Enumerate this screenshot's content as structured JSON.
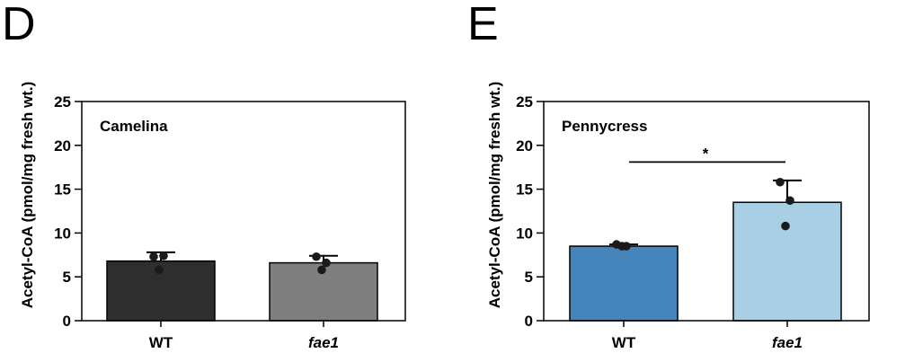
{
  "chart_data": [
    {
      "panel": "D",
      "type": "bar",
      "title": "Camelina",
      "ylabel": "Acetyl-CoA (pmol/mg fresh wt.)",
      "ylim": [
        0,
        25
      ],
      "yticks": [
        0,
        5,
        10,
        15,
        20,
        25
      ],
      "categories": [
        "WT",
        "fae1"
      ],
      "italic_categories": [
        false,
        true
      ],
      "values": [
        6.8,
        6.6
      ],
      "errors": [
        1.0,
        0.8
      ],
      "colors": [
        "#2e2e2e",
        "#7f7f7f"
      ],
      "points": [
        [
          7.3,
          7.4,
          5.8
        ],
        [
          7.3,
          6.6,
          5.8
        ]
      ],
      "significance": null
    },
    {
      "panel": "E",
      "type": "bar",
      "title": "Pennycress",
      "ylabel": "Acetyl-CoA (pmol/mg fresh wt.)",
      "ylim": [
        0,
        25
      ],
      "yticks": [
        0,
        5,
        10,
        15,
        20,
        25
      ],
      "categories": [
        "WT",
        "fae1"
      ],
      "italic_categories": [
        false,
        true
      ],
      "values": [
        8.5,
        13.5
      ],
      "errors": [
        0.2,
        2.5
      ],
      "colors": [
        "#4685bc",
        "#a9cfe5"
      ],
      "points": [
        [
          8.7,
          8.5,
          8.5
        ],
        [
          15.8,
          13.7,
          10.8
        ]
      ],
      "significance": {
        "label": "*",
        "y": 18.1
      }
    }
  ]
}
